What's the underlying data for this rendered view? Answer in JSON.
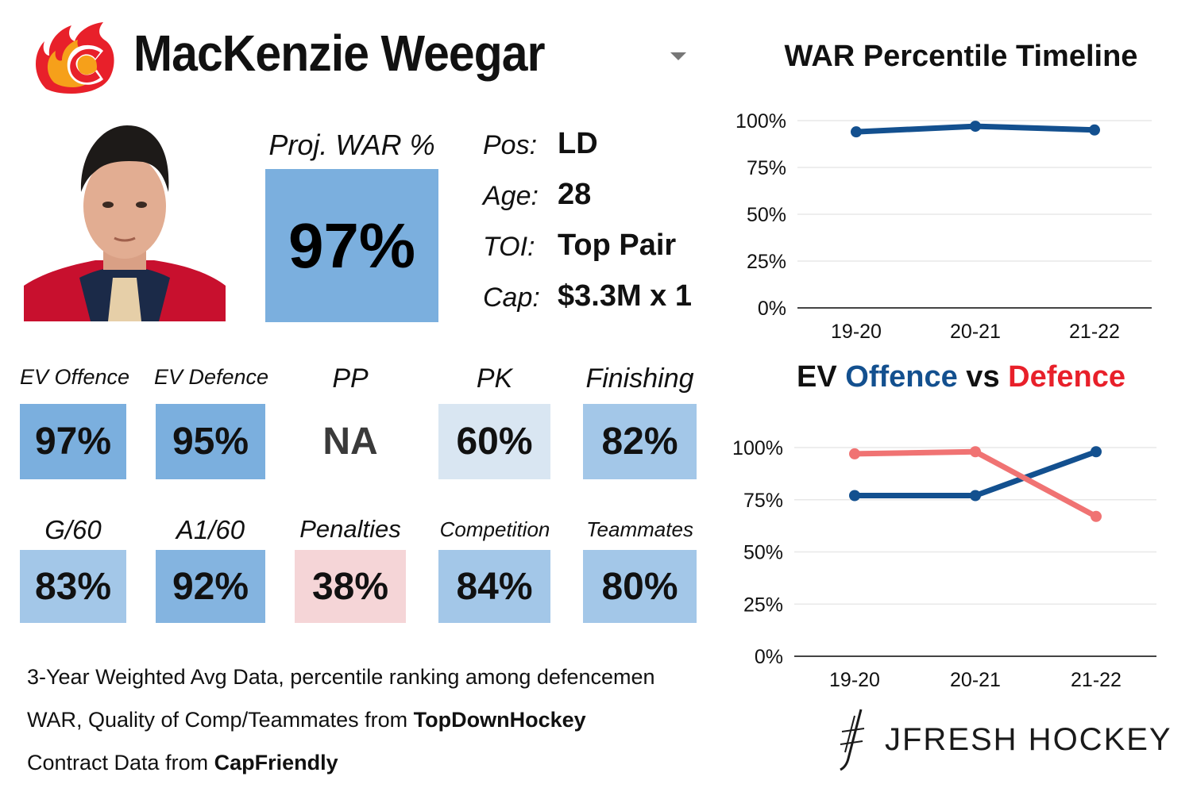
{
  "header": {
    "player_name": "MacKenzie Weegar",
    "team_logo_icon": "flames-logo-icon"
  },
  "proj_war": {
    "label": "Proj. WAR %",
    "value": "97%",
    "color": "#7bafde"
  },
  "info": {
    "pos_label": "Pos:",
    "pos_value": "LD",
    "age_label": "Age:",
    "age_value": "28",
    "toi_label": "TOI:",
    "toi_value": "Top Pair",
    "cap_label": "Cap:",
    "cap_value": "$3.3M x 1"
  },
  "stats_row1": [
    {
      "label": "EV Offence",
      "value": "97%",
      "color": "#7bafde"
    },
    {
      "label": "EV Defence",
      "value": "95%",
      "color": "#7bafde"
    },
    {
      "label": "PP",
      "value": "NA",
      "color": "#ffffff"
    },
    {
      "label": "PK",
      "value": "60%",
      "color": "#d9e6f2"
    },
    {
      "label": "Finishing",
      "value": "82%",
      "color": "#a3c7e8"
    }
  ],
  "stats_row2": [
    {
      "label": "G/60",
      "value": "83%",
      "color": "#a3c7e8"
    },
    {
      "label": "A1/60",
      "value": "92%",
      "color": "#84b4e0"
    },
    {
      "label": "Penalties",
      "value": "38%",
      "color": "#f5d5d7"
    },
    {
      "label": "Competition",
      "value": "84%",
      "color": "#a3c7e8"
    },
    {
      "label": "Teammates",
      "value": "80%",
      "color": "#a3c7e8"
    }
  ],
  "footnotes": {
    "line1": "3-Year Weighted Avg Data, percentile ranking among defencemen",
    "line2_prefix": "WAR, Quality of Comp/Teammates from ",
    "line2_source": "TopDownHockey",
    "line3_prefix": "Contract Data from ",
    "line3_source": "CapFriendly"
  },
  "brand": {
    "text": "JFRESH HOCKEY",
    "icon": "jfresh-stick-icon"
  },
  "chart_data": [
    {
      "type": "line",
      "title": "WAR Percentile Timeline",
      "categories": [
        "19-20",
        "20-21",
        "21-22"
      ],
      "series": [
        {
          "name": "WAR",
          "values": [
            94,
            97,
            95
          ],
          "color": "#13508f"
        }
      ],
      "ylim": [
        0,
        100
      ],
      "yticks": [
        "0%",
        "25%",
        "50%",
        "75%",
        "100%"
      ],
      "grid": true
    },
    {
      "type": "line",
      "title_parts": {
        "prefix": "EV ",
        "offence": "Offence",
        "vs": " vs ",
        "defence": "Defence"
      },
      "title_colors": {
        "offence": "#13508f",
        "defence": "#e8202a"
      },
      "categories": [
        "19-20",
        "20-21",
        "21-22"
      ],
      "series": [
        {
          "name": "Offence",
          "values": [
            77,
            77,
            98
          ],
          "color": "#13508f"
        },
        {
          "name": "Defence",
          "values": [
            97,
            98,
            67
          ],
          "color": "#f07373"
        }
      ],
      "ylim": [
        0,
        100
      ],
      "yticks": [
        "0%",
        "25%",
        "50%",
        "75%",
        "100%"
      ],
      "grid": true
    }
  ]
}
